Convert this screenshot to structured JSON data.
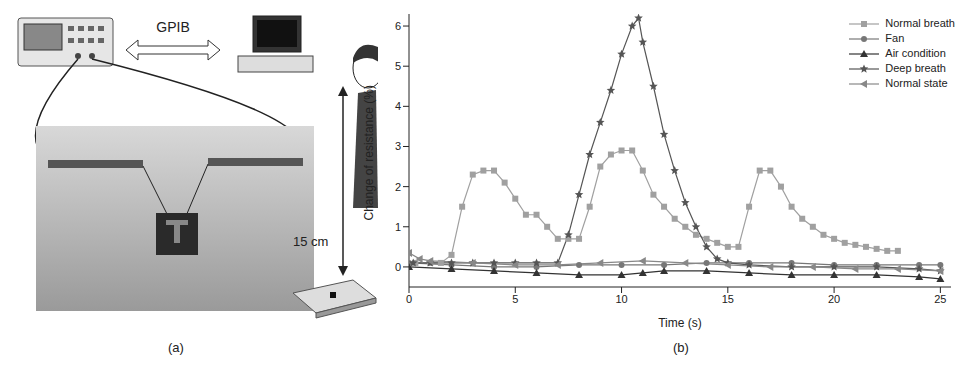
{
  "figure": {
    "panel_a": {
      "caption": "(a)",
      "labels": [
        "GPIB",
        "15 cm"
      ]
    },
    "panel_b": {
      "caption": "(b)"
    }
  },
  "chart_data": {
    "type": "line",
    "x_label": "Time (s)",
    "y_label": "Change of resistance (%)",
    "xlim": [
      0,
      25.5
    ],
    "xticks": [
      0,
      5,
      10,
      15,
      20,
      25
    ],
    "ylim": [
      -0.5,
      6.3
    ],
    "yticks": [
      0,
      1,
      2,
      3,
      4,
      5,
      6
    ],
    "legend": "upper right",
    "series": [
      {
        "name": "Normal breath",
        "color": "#a0a0a0",
        "marker": "square",
        "x": [
          0.3,
          1,
          1.5,
          2,
          2.5,
          3,
          3.5,
          4,
          4.5,
          5,
          5.5,
          6,
          6.5,
          7,
          7.5,
          8,
          8.5,
          9,
          9.5,
          10,
          10.5,
          11,
          11.5,
          12,
          12.5,
          13,
          13.5,
          14,
          14.5,
          15,
          15.5,
          16,
          16.5,
          17,
          17.5,
          18,
          18.5,
          19,
          19.5,
          20,
          20.5,
          21,
          21.5,
          22,
          22.5,
          23
        ],
        "values": [
          0.1,
          0.1,
          0.1,
          0.3,
          1.5,
          2.3,
          2.4,
          2.4,
          2.1,
          1.7,
          1.3,
          1.3,
          1.0,
          0.7,
          0.7,
          0.7,
          1.5,
          2.5,
          2.8,
          2.9,
          2.9,
          2.4,
          1.8,
          1.5,
          1.2,
          1.0,
          0.8,
          0.7,
          0.6,
          0.5,
          0.5,
          1.5,
          2.4,
          2.4,
          2.0,
          1.5,
          1.2,
          1.0,
          0.8,
          0.7,
          0.6,
          0.55,
          0.5,
          0.45,
          0.4,
          0.4
        ]
      },
      {
        "name": "Fan",
        "color": "#777777",
        "marker": "circle",
        "x": [
          0,
          2,
          4,
          6,
          8,
          10,
          12,
          14,
          16,
          18,
          20,
          22,
          24,
          25
        ],
        "values": [
          0.1,
          0.05,
          0.0,
          0.0,
          0.05,
          0.05,
          0.05,
          0.1,
          0.1,
          0.1,
          0.05,
          0.05,
          0.05,
          0.05
        ]
      },
      {
        "name": "Air condition",
        "color": "#333333",
        "marker": "triangle",
        "x": [
          0,
          2,
          4,
          6,
          8,
          10,
          11,
          12,
          14,
          16,
          18,
          20,
          22,
          24,
          25
        ],
        "values": [
          0.0,
          -0.05,
          -0.1,
          -0.15,
          -0.2,
          -0.2,
          -0.15,
          -0.1,
          -0.1,
          -0.15,
          -0.2,
          -0.2,
          -0.2,
          -0.25,
          -0.3
        ]
      },
      {
        "name": "Deep breath",
        "color": "#555555",
        "marker": "star",
        "x": [
          0.2,
          1,
          2,
          3,
          4,
          5,
          6,
          7,
          7.5,
          8,
          8.5,
          9,
          9.5,
          10,
          10.5,
          10.8,
          11,
          11.5,
          12,
          12.5,
          13,
          13.5,
          14,
          14.5,
          15,
          16,
          18,
          20,
          22,
          24,
          25
        ],
        "values": [
          0.1,
          0.1,
          0.1,
          0.1,
          0.1,
          0.1,
          0.1,
          0.1,
          0.8,
          1.8,
          2.8,
          3.6,
          4.4,
          5.3,
          6.0,
          6.2,
          5.6,
          4.5,
          3.3,
          2.4,
          1.6,
          1.0,
          0.5,
          0.2,
          0.1,
          0.05,
          0.0,
          0.0,
          0.0,
          -0.05,
          -0.1
        ]
      },
      {
        "name": "Normal state",
        "color": "#888888",
        "marker": "triangle-left",
        "x": [
          0,
          0.5,
          1,
          3,
          5,
          7,
          9,
          11,
          13,
          15,
          17,
          19,
          21,
          23,
          25
        ],
        "values": [
          0.35,
          0.2,
          0.15,
          0.1,
          0.05,
          0.05,
          0.1,
          0.15,
          0.1,
          0.05,
          0.0,
          0.0,
          -0.05,
          -0.05,
          -0.1
        ]
      }
    ]
  }
}
